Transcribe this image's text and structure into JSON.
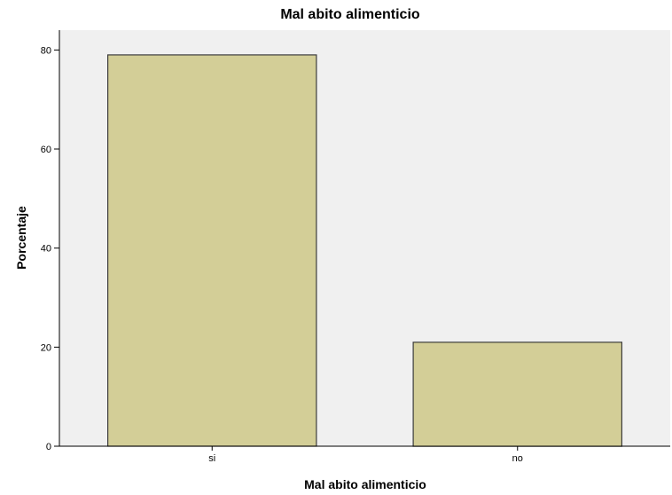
{
  "chart_data": {
    "type": "bar",
    "title": "Mal abito alimenticio",
    "xlabel": "Mal abito alimenticio",
    "ylabel": "Porcentaje",
    "categories": [
      "si",
      "no"
    ],
    "values": [
      79,
      21
    ],
    "ylim": [
      0,
      84
    ],
    "yticks": [
      0,
      20,
      40,
      60,
      80
    ],
    "grid": false,
    "colors": {
      "plot_background": "#f0f0f0",
      "bar_fill": "#d3ce97",
      "bar_stroke": "#3c3c3c",
      "axis": "#000000"
    }
  }
}
